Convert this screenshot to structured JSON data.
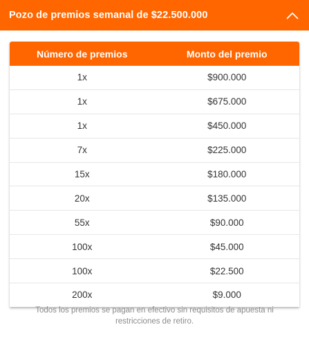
{
  "header": {
    "title": "Pozo de premios semanal de $22.500.000",
    "toggle_icon": "chevron-up-icon"
  },
  "table": {
    "columns": [
      "Número de premios",
      "Monto del premio"
    ],
    "rows": [
      [
        "1x",
        "$900.000"
      ],
      [
        "1x",
        "$675.000"
      ],
      [
        "1x",
        "$450.000"
      ],
      [
        "7x",
        "$225.000"
      ],
      [
        "15x",
        "$180.000"
      ],
      [
        "20x",
        "$135.000"
      ],
      [
        "55x",
        "$90.000"
      ],
      [
        "100x",
        "$45.000"
      ],
      [
        "100x",
        "$22.500"
      ],
      [
        "200x",
        "$9.000"
      ]
    ]
  },
  "footer": {
    "note": "Todos los premios se pagan en efectivo sin requisitos de apuesta ni restricciones de retiro."
  },
  "colors": {
    "accent": "#ff6600",
    "text": "#333333",
    "muted": "#8a8a8a"
  }
}
